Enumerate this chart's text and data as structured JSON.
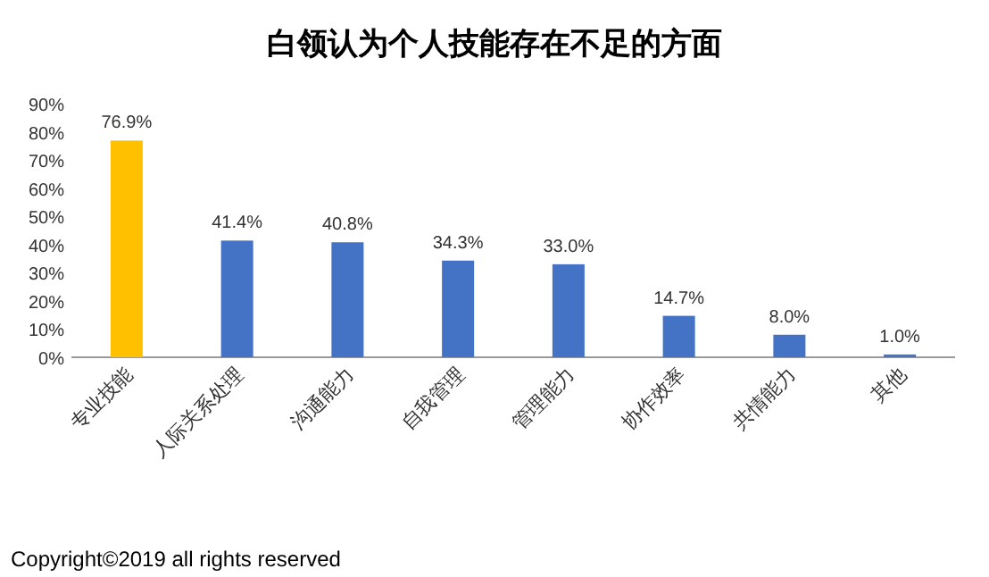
{
  "chart_data": {
    "type": "bar",
    "title": "白领认为个人技能存在不足的方面",
    "categories": [
      "专业技能",
      "人际关系处理",
      "沟通能力",
      "自我管理",
      "管理能力",
      "协作效率",
      "共情能力",
      "其他"
    ],
    "values": [
      76.9,
      41.4,
      40.8,
      34.3,
      33.0,
      14.7,
      8.0,
      1.0
    ],
    "value_labels": [
      "76.9%",
      "41.4%",
      "40.8%",
      "34.3%",
      "33.0%",
      "14.7%",
      "8.0%",
      "1.0%"
    ],
    "colors": [
      "#ffc000",
      "#4472c4",
      "#4472c4",
      "#4472c4",
      "#4472c4",
      "#4472c4",
      "#4472c4",
      "#4472c4"
    ],
    "ylim": [
      0,
      90
    ],
    "yticks": [
      {
        "value": 0,
        "label": "0%"
      },
      {
        "value": 10,
        "label": "10%"
      },
      {
        "value": 20,
        "label": "20%"
      },
      {
        "value": 30,
        "label": "30%"
      },
      {
        "value": 40,
        "label": "40%"
      },
      {
        "value": 50,
        "label": "50%"
      },
      {
        "value": 60,
        "label": "60%"
      },
      {
        "value": 70,
        "label": "70%"
      },
      {
        "value": 80,
        "label": "80%"
      },
      {
        "value": 90,
        "label": "90%"
      }
    ],
    "grid": false,
    "annotations": [
      "Copyright©2019 all rights reserved"
    ]
  }
}
